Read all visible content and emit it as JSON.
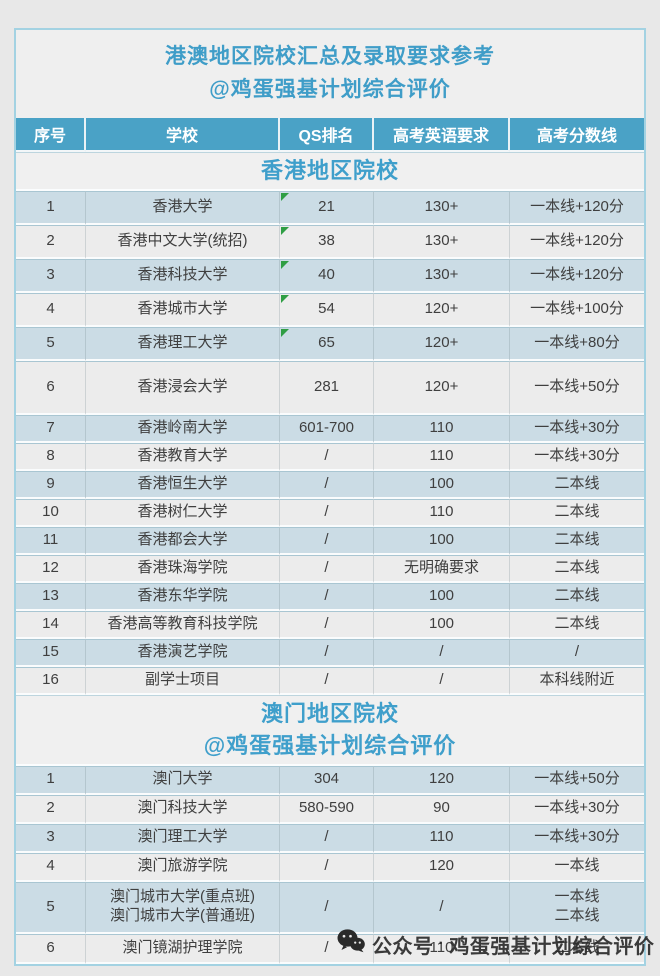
{
  "chart_data": {
    "type": "table",
    "title_lines": {
      "line1": "港澳地区院校汇总及录取要求参考",
      "line2": "@鸡蛋强基计划综合评价"
    },
    "columns": [
      "序号",
      "学校",
      "QS排名",
      "高考英语要求",
      "高考分数线"
    ],
    "sections": [
      {
        "header_lines": [
          "香港地区院校"
        ],
        "rows": [
          {
            "no": "1",
            "school": "香港大学",
            "qs": "21",
            "marker": true,
            "english": "130+",
            "score": "一本线+120分"
          },
          {
            "no": "2",
            "school": "香港中文大学(统招)",
            "qs": "38",
            "marker": true,
            "english": "130+",
            "score": "一本线+120分"
          },
          {
            "no": "3",
            "school": "香港科技大学",
            "qs": "40",
            "marker": true,
            "english": "130+",
            "score": "一本线+120分"
          },
          {
            "no": "4",
            "school": "香港城市大学",
            "qs": "54",
            "marker": true,
            "english": "120+",
            "score": "一本线+100分"
          },
          {
            "no": "5",
            "school": "香港理工大学",
            "qs": "65",
            "marker": true,
            "english": "120+",
            "score": "一本线+80分"
          },
          {
            "no": "6",
            "school": "香港浸会大学",
            "qs": "281",
            "marker": false,
            "english": "120+",
            "score": "一本线+50分"
          },
          {
            "no": "7",
            "school": "香港岭南大学",
            "qs": "601-700",
            "marker": false,
            "english": "110",
            "score": "一本线+30分"
          },
          {
            "no": "8",
            "school": "香港教育大学",
            "qs": "/",
            "marker": false,
            "english": "110",
            "score": "一本线+30分"
          },
          {
            "no": "9",
            "school": "香港恒生大学",
            "qs": "/",
            "marker": false,
            "english": "100",
            "score": "二本线"
          },
          {
            "no": "10",
            "school": "香港树仁大学",
            "qs": "/",
            "marker": false,
            "english": "110",
            "score": "二本线"
          },
          {
            "no": "11",
            "school": "香港都会大学",
            "qs": "/",
            "marker": false,
            "english": "100",
            "score": "二本线"
          },
          {
            "no": "12",
            "school": "香港珠海学院",
            "qs": "/",
            "marker": false,
            "english": "无明确要求",
            "score": "二本线"
          },
          {
            "no": "13",
            "school": "香港东华学院",
            "qs": "/",
            "marker": false,
            "english": "100",
            "score": "二本线"
          },
          {
            "no": "14",
            "school": "香港高等教育科技学院",
            "qs": "/",
            "marker": false,
            "english": "100",
            "score": "二本线"
          },
          {
            "no": "15",
            "school": "香港演艺学院",
            "qs": "/",
            "marker": false,
            "english": "/",
            "score": "/"
          },
          {
            "no": "16",
            "school": "副学士项目",
            "qs": "/",
            "marker": false,
            "english": "/",
            "score": "本科线附近"
          }
        ]
      },
      {
        "header_lines": [
          "澳门地区院校",
          "@鸡蛋强基计划综合评价"
        ],
        "rows": [
          {
            "no": "1",
            "school": "澳门大学",
            "qs": "304",
            "marker": false,
            "english": "120",
            "score": "一本线+50分"
          },
          {
            "no": "2",
            "school": "澳门科技大学",
            "qs": "580-590",
            "marker": false,
            "english": "90",
            "score": "一本线+30分"
          },
          {
            "no": "3",
            "school": "澳门理工大学",
            "qs": "/",
            "marker": false,
            "english": "110",
            "score": "一本线+30分"
          },
          {
            "no": "4",
            "school": "澳门旅游学院",
            "qs": "/",
            "marker": false,
            "english": "120",
            "score": "一本线"
          },
          {
            "no": "5",
            "school": "澳门城市大学(重点班)",
            "school_line2": "澳门城市大学(普通班)",
            "qs": "/",
            "marker": false,
            "english": "/",
            "score": "一本线",
            "score_line2": "二本线"
          },
          {
            "no": "6",
            "school": "澳门镜湖护理学院",
            "qs": "/",
            "marker": false,
            "english": "110",
            "score": "二本线"
          }
        ]
      }
    ]
  },
  "watermark": {
    "icon": "wechat-icon",
    "label": "公众号",
    "separator": "·",
    "account": "鸡蛋强基计划综合评价"
  },
  "colors": {
    "accent_blue": "#4aa2c6",
    "title_blue": "#3f9dc8",
    "row_blue": "#cbdce5",
    "row_gray": "#ececec",
    "marker_green": "#2f9e44",
    "watermark_dark": "#2a2a2a"
  }
}
